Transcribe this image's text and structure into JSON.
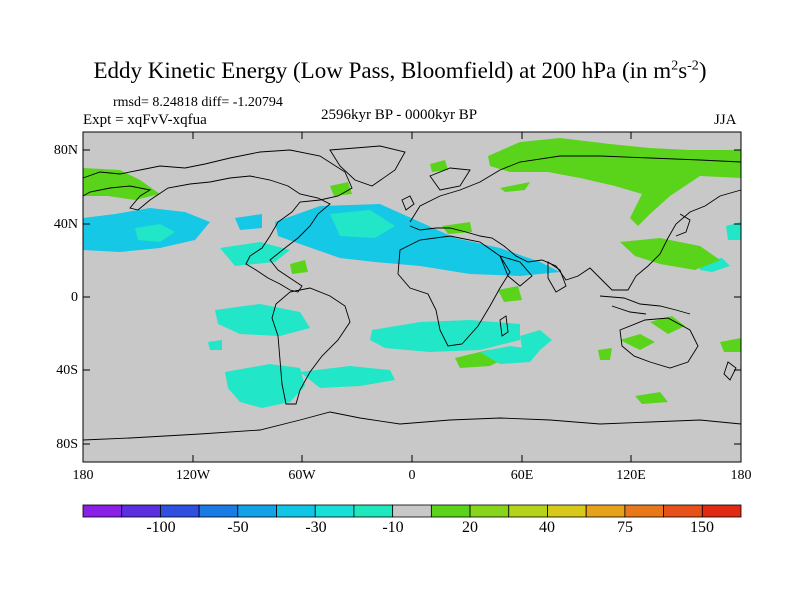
{
  "title": {
    "main": "Eddy Kinetic Energy (Low Pass, Bloomfield) at 200 hPa (in m",
    "sup1": "2",
    "mid": "s",
    "sup2": "-2",
    "end": ")"
  },
  "stats": "rmsd= 8.24818   diff= -1.20794",
  "expt": "Expt = xqFvV-xqfua",
  "period": "2596kyr BP - 0000kyr BP",
  "season": "JJA",
  "lat_labels": [
    "80N",
    "40N",
    "0",
    "40S",
    "80S"
  ],
  "lon_labels": [
    "180",
    "120W",
    "60W",
    "0",
    "60E",
    "120E",
    "180"
  ],
  "colorbar": {
    "labels": [
      "-100",
      "-50",
      "-30",
      "-10",
      "20",
      "40",
      "75",
      "150"
    ],
    "colors": [
      "#8a1fe8",
      "#5a2fe0",
      "#2f4fe0",
      "#1a7ae6",
      "#12a2e8",
      "#10c6e6",
      "#18e0d8",
      "#1fe8bc",
      "#c8c8c8",
      "#5ad41a",
      "#88d41a",
      "#b4d41a",
      "#d8c81a",
      "#e8a21a",
      "#e8781a",
      "#e8501a",
      "#e02a14"
    ]
  },
  "map_colors": {
    "ocean_bg": "#c8c8c8",
    "cyan": "#22e6c8",
    "blue": "#14c8e6",
    "green": "#5ad41a"
  }
}
